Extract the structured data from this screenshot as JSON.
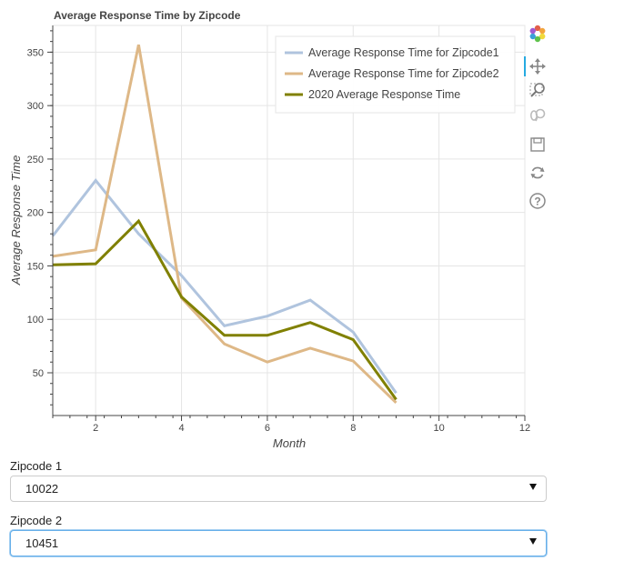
{
  "chart_data": {
    "type": "line",
    "title": "Average Response Time by Zipcode",
    "xlabel": "Month",
    "ylabel": "Average Response Time",
    "xlim": [
      1,
      12
    ],
    "ylim": [
      10,
      375
    ],
    "xticks": [
      2,
      4,
      6,
      8,
      10,
      12
    ],
    "yticks": [
      50,
      100,
      150,
      200,
      250,
      300,
      350
    ],
    "grid": true,
    "legend_position": "top-right",
    "series": [
      {
        "name": "Average Response Time for Zipcode1",
        "color": "#b0c4de",
        "x": [
          1,
          2,
          3,
          4,
          5,
          6,
          7,
          8,
          9
        ],
        "y": [
          178,
          230,
          180,
          141,
          94,
          103,
          118,
          88,
          31
        ]
      },
      {
        "name": "Average Response Time for Zipcode2",
        "color": "#deb887",
        "x": [
          1,
          2,
          3,
          4,
          5,
          6,
          7,
          8,
          9
        ],
        "y": [
          159,
          165,
          357,
          120,
          77,
          60,
          73,
          61,
          22
        ]
      },
      {
        "name": "2020 Average Response Time",
        "color": "#808000",
        "x": [
          1,
          2,
          3,
          4,
          5,
          6,
          7,
          8,
          9
        ],
        "y": [
          151,
          152,
          192,
          121,
          85,
          85,
          97,
          81,
          25
        ]
      }
    ]
  },
  "toolbar": {
    "icons": [
      "bokeh-logo-icon",
      "pan-icon",
      "box-zoom-icon",
      "wheel-zoom-icon",
      "save-icon",
      "reset-icon",
      "help-icon"
    ]
  },
  "widgets": {
    "zip1": {
      "label": "Zipcode 1",
      "value": "10022"
    },
    "zip2": {
      "label": "Zipcode 2",
      "value": "10451"
    }
  }
}
